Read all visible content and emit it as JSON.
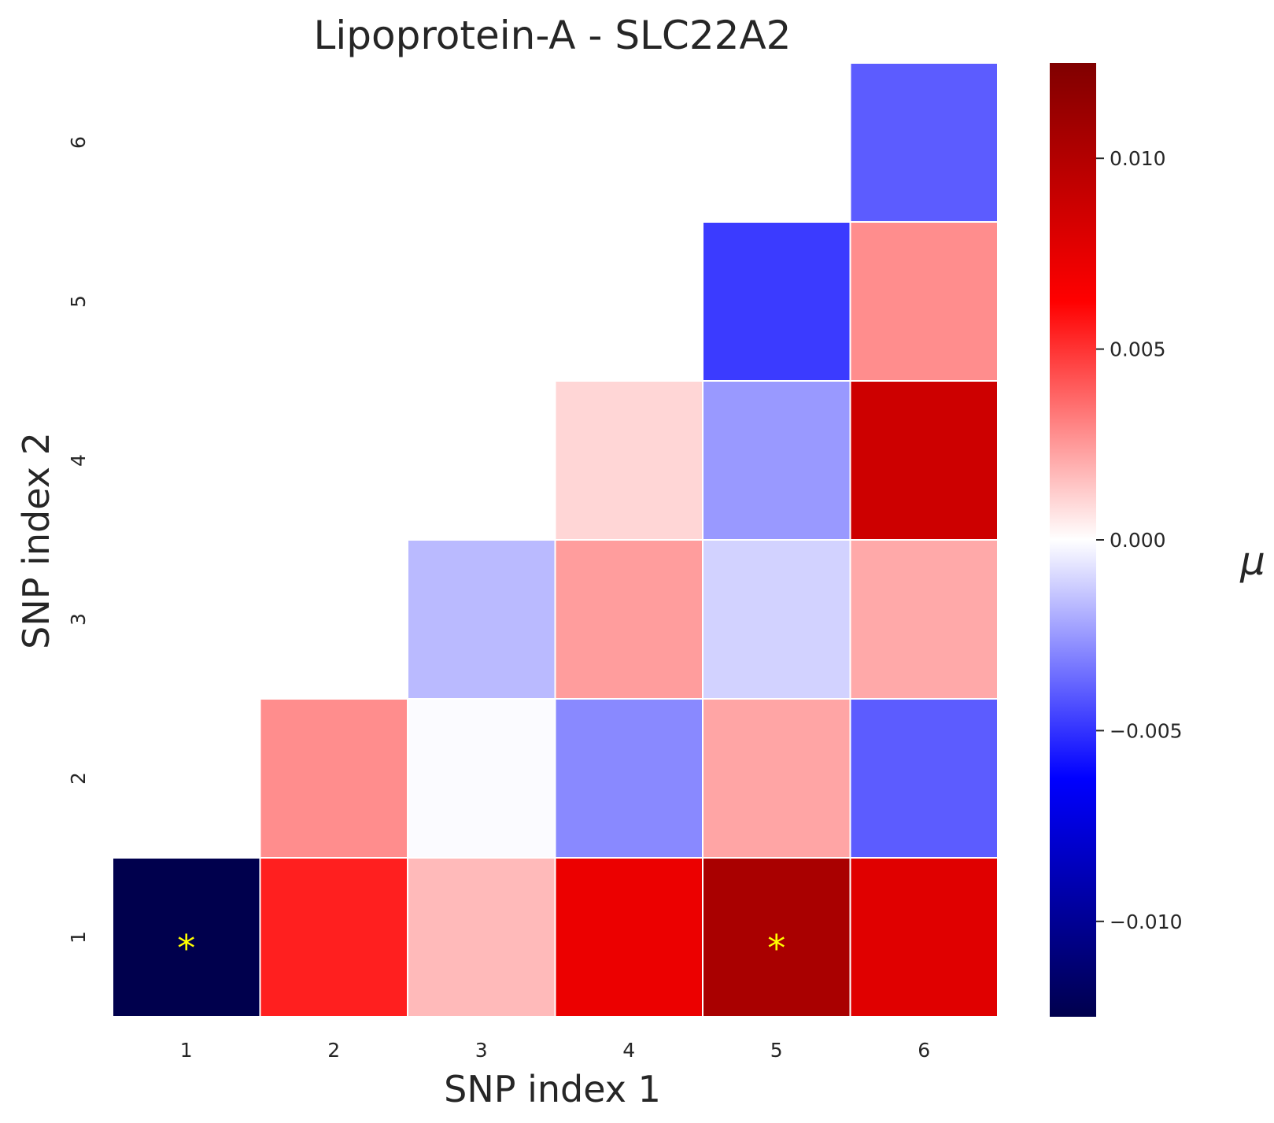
{
  "chart_data": {
    "type": "heatmap",
    "title": "Lipoprotein-A - SLC22A2",
    "xlabel": "SNP index 1",
    "ylabel": "SNP index 2",
    "x_categories": [
      "1",
      "2",
      "3",
      "4",
      "5",
      "6"
    ],
    "y_categories": [
      "1",
      "2",
      "3",
      "4",
      "5",
      "6"
    ],
    "mask": "upper-triangle (only cells with y <= x shown)",
    "cells": [
      {
        "x": "1",
        "y": "1",
        "value": -0.0125,
        "annotation": "*"
      },
      {
        "x": "2",
        "y": "1",
        "value": 0.0055,
        "annotation": ""
      },
      {
        "x": "2",
        "y": "2",
        "value": 0.0028,
        "annotation": ""
      },
      {
        "x": "3",
        "y": "1",
        "value": 0.0017,
        "annotation": ""
      },
      {
        "x": "3",
        "y": "2",
        "value": -0.0001,
        "annotation": ""
      },
      {
        "x": "3",
        "y": "3",
        "value": -0.0017,
        "annotation": ""
      },
      {
        "x": "4",
        "y": "1",
        "value": 0.0072,
        "annotation": ""
      },
      {
        "x": "4",
        "y": "2",
        "value": -0.0029,
        "annotation": ""
      },
      {
        "x": "4",
        "y": "3",
        "value": 0.0024,
        "annotation": ""
      },
      {
        "x": "4",
        "y": "4",
        "value": 0.001,
        "annotation": ""
      },
      {
        "x": "5",
        "y": "1",
        "value": 0.0105,
        "annotation": "*"
      },
      {
        "x": "5",
        "y": "2",
        "value": 0.0022,
        "annotation": ""
      },
      {
        "x": "5",
        "y": "3",
        "value": -0.0011,
        "annotation": ""
      },
      {
        "x": "5",
        "y": "4",
        "value": -0.0025,
        "annotation": ""
      },
      {
        "x": "5",
        "y": "5",
        "value": -0.0048,
        "annotation": ""
      },
      {
        "x": "6",
        "y": "1",
        "value": 0.0078,
        "annotation": ""
      },
      {
        "x": "6",
        "y": "2",
        "value": -0.004,
        "annotation": ""
      },
      {
        "x": "6",
        "y": "3",
        "value": 0.0021,
        "annotation": ""
      },
      {
        "x": "6",
        "y": "4",
        "value": 0.0087,
        "annotation": ""
      },
      {
        "x": "6",
        "y": "5",
        "value": 0.0028,
        "annotation": ""
      },
      {
        "x": "6",
        "y": "6",
        "value": -0.004,
        "annotation": ""
      }
    ],
    "colormap": "seismic",
    "color_range": [
      -0.0125,
      0.0125
    ],
    "colorbar": {
      "label": "μ",
      "ticks": [
        0.01,
        0.005,
        0.0,
        -0.005,
        -0.01
      ],
      "tick_labels": [
        "0.010",
        "0.005",
        "0.000",
        "−0.005",
        "−0.010"
      ]
    },
    "grid": false,
    "annotation_color": "#ffff00"
  }
}
